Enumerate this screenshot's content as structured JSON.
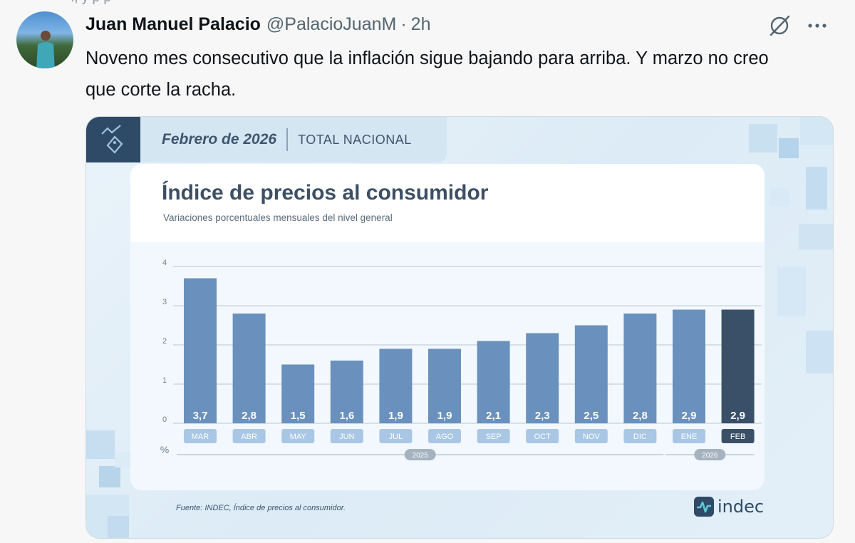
{
  "tweet": {
    "author_name": "Juan Manuel Palacio",
    "handle": "@PalacioJuanM",
    "separator": "·",
    "time": "2h",
    "text": "Noveno mes consecutivo que la inflación sigue bajando para arriba. Y marzo no creo que corte la racha.",
    "icons": {
      "grok": "grok-icon",
      "more": "more-icon"
    }
  },
  "media": {
    "banner_date": "Febrero de 2026",
    "banner_scope": "TOTAL NACIONAL",
    "chart_title": "Índice de precios al consumidor",
    "chart_subtitle": "Variaciones porcentuales mensuales del nivel general",
    "source": "Fuente: INDEC, Índice de precios al consumidor.",
    "brand": "indec",
    "colors": {
      "bar": "#6a91bd",
      "bar_highlight": "#3a5068",
      "dark": "#2e4a66"
    }
  },
  "chart_data": {
    "type": "bar",
    "categories": [
      "MAR",
      "ABR",
      "MAY",
      "JUN",
      "JUL",
      "AGO",
      "SEP",
      "OCT",
      "NOV",
      "DIC",
      "ENE",
      "FEB"
    ],
    "values": [
      3.7,
      2.8,
      1.5,
      1.6,
      1.9,
      1.9,
      2.1,
      2.3,
      2.5,
      2.8,
      2.9,
      2.9
    ],
    "value_labels": [
      "3,7",
      "2,8",
      "1,5",
      "1,6",
      "1,9",
      "1,9",
      "2,1",
      "2,3",
      "2,5",
      "2,8",
      "2,9",
      "2,9"
    ],
    "highlight_index": 11,
    "yticks": [
      0,
      1,
      2,
      3,
      4
    ],
    "ylim": [
      0,
      4
    ],
    "unit_label": "%",
    "year_groups": [
      {
        "label": "2025",
        "from": 0,
        "to": 9
      },
      {
        "label": "2026",
        "from": 10,
        "to": 11
      }
    ],
    "title": "Índice de precios al consumidor",
    "subtitle": "Variaciones porcentuales mensuales del nivel general",
    "grid": true
  }
}
